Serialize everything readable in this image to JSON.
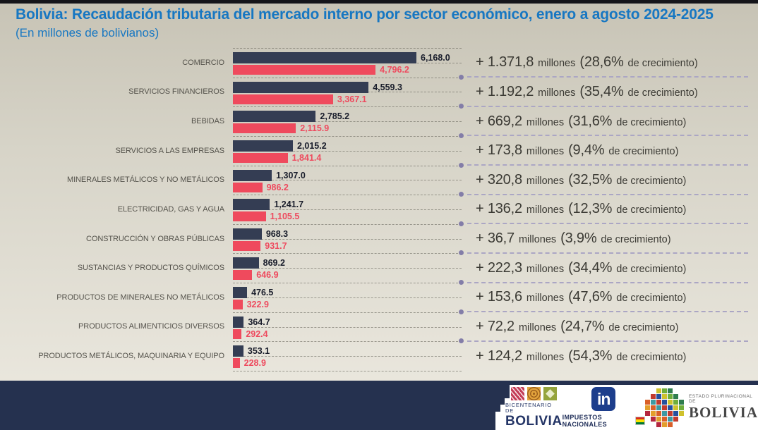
{
  "title": "Bolivia: Recaudación tributaria del mercado interno por sector económico, enero a agosto 2024-2025",
  "subtitle": "(En millones de bolivianos)",
  "colors": {
    "title_blue": "#1777c2",
    "bar_2025": "#343d53",
    "bar_2024": "#ef4a5d",
    "annotation_bullet": "#837da8",
    "footer_navy": "#25314f"
  },
  "chart_data": {
    "type": "bar",
    "orientation": "horizontal",
    "title": "Bolivia: Recaudación tributaria del mercado interno por sector económico, enero a agosto 2024-2025",
    "unit": "millones de bolivianos",
    "xlim": [
      0,
      6500
    ],
    "xmax": 6168.0,
    "grid": "dashed-horizontal",
    "legend": "none",
    "categories": [
      "COMERCIO",
      "SERVICIOS FINANCIEROS",
      "BEBIDAS",
      "SERVICIOS A LAS EMPRESAS",
      "MINERALES METÁLICOS Y NO METÁLICOS",
      "ELECTRICIDAD, GAS Y AGUA",
      "CONSTRUCCIÓN Y OBRAS PÚBLICAS",
      "SUSTANCIAS Y PRODUCTOS QUÍMICOS",
      "PRODUCTOS DE MINERALES NO METÁLICOS",
      "PRODUCTOS ALIMENTICIOS DIVERSOS",
      "PRODUCTOS METÁLICOS, MAQUINARIA Y EQUIPO"
    ],
    "series": [
      {
        "name": "2025",
        "color": "#343d53",
        "values": [
          6168.0,
          4559.3,
          2785.2,
          2015.2,
          1307.0,
          1241.7,
          968.3,
          869.2,
          476.5,
          364.7,
          353.1
        ],
        "labels": [
          "6,168.0",
          "4,559.3",
          "2,785.2",
          "2,015.2",
          "1,307.0",
          "1,241.7",
          "968.3",
          "869.2",
          "476.5",
          "364.7",
          "353.1"
        ]
      },
      {
        "name": "2024",
        "color": "#ef4a5d",
        "values": [
          4796.2,
          3367.1,
          2115.9,
          1841.4,
          986.2,
          1105.5,
          931.7,
          646.9,
          322.9,
          292.4,
          228.9
        ],
        "labels": [
          "4,796.2",
          "3,367.1",
          "2,115.9",
          "1,841.4",
          "986.2",
          "1,105.5",
          "931.7",
          "646.9",
          "322.9",
          "292.4",
          "228.9"
        ]
      }
    ],
    "annotations": [
      {
        "delta": "+ 1.371,8",
        "unit": "millones",
        "pct": "(28,6%",
        "suffix": "de crecimiento)"
      },
      {
        "delta": "+ 1.192,2",
        "unit": "millones",
        "pct": "(35,4%",
        "suffix": "de crecimiento)"
      },
      {
        "delta": "+ 669,2",
        "unit": "millones",
        "pct": "(31,6%",
        "suffix": "de crecimiento)"
      },
      {
        "delta": "+ 173,8",
        "unit": "millones",
        "pct": "(9,4%",
        "suffix": "de crecimiento)"
      },
      {
        "delta": "+ 320,8",
        "unit": "millones",
        "pct": "(32,5%",
        "suffix": "de crecimiento)"
      },
      {
        "delta": "+ 136,2",
        "unit": "millones",
        "pct": "(12,3%",
        "suffix": "de crecimiento)"
      },
      {
        "delta": "+ 36,7",
        "unit": "millones",
        "pct": "(3,9%",
        "suffix": "de crecimiento)"
      },
      {
        "delta": "+ 222,3",
        "unit": "millones",
        "pct": "(34,4%",
        "suffix": "de crecimiento)"
      },
      {
        "delta": "+ 153,6",
        "unit": "millones",
        "pct": "(47,6%",
        "suffix": "de crecimiento)"
      },
      {
        "delta": "+ 72,2",
        "unit": "millones",
        "pct": "(24,7%",
        "suffix": "de crecimiento)"
      },
      {
        "delta": "+ 124,2",
        "unit": "millones",
        "pct": "(54,3%",
        "suffix": "de crecimiento)"
      }
    ]
  },
  "footer": {
    "bicentenario": {
      "line1": "BICENTENARIO DE",
      "line2": "BOLIVIA"
    },
    "impuestos": {
      "mark": "in",
      "label": "IMPUESTOS NACIONALES"
    },
    "estado": {
      "line1": "ESTADO PLURINACIONAL DE",
      "line2": "BOLIVIA"
    }
  }
}
